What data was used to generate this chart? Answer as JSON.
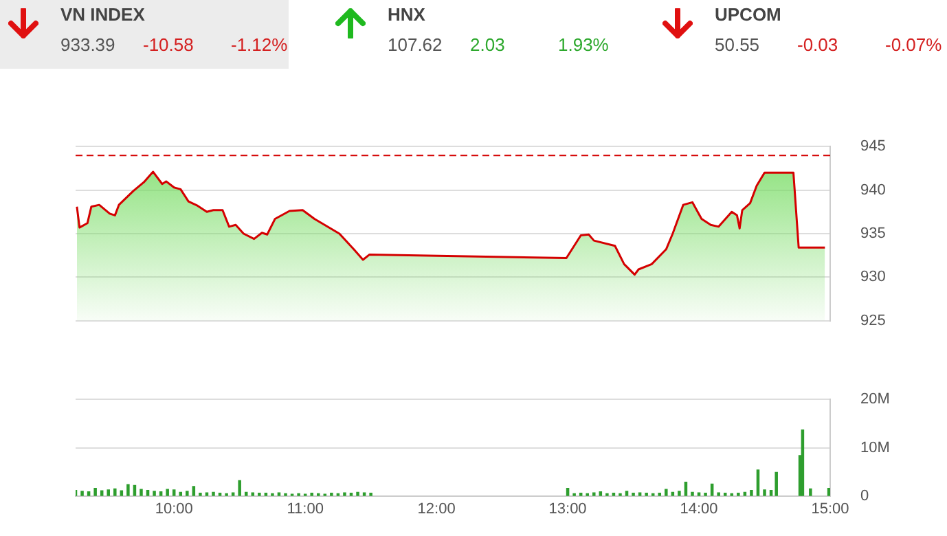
{
  "chart_data": [
    {
      "type": "other",
      "annotations": [
        "VN INDEX",
        "933.39",
        "-10.58",
        "-1.12%",
        "HNX",
        "107.62",
        "2.03",
        "1.93%",
        "UPCOM",
        "50.55",
        "-0.03",
        "-0.07%"
      ]
    },
    {
      "type": "area",
      "color": "#d40000",
      "tick_labels": "y",
      "grid": "y",
      "line_style": "solid",
      "x": [
        9.26,
        9.28,
        9.34,
        9.37,
        9.43,
        9.51,
        9.55,
        9.58,
        9.69,
        9.77,
        9.84,
        9.91,
        9.94,
        10.0,
        10.05,
        10.11,
        10.18,
        10.25,
        10.3,
        10.37,
        10.42,
        10.47,
        10.53,
        10.61,
        10.67,
        10.71,
        10.77,
        10.88,
        10.98,
        11.07,
        11.26,
        11.37,
        11.44,
        11.49,
        12.99,
        13.1,
        13.16,
        13.2,
        13.36,
        13.43,
        13.51,
        13.54,
        13.64,
        13.75,
        13.8,
        13.88,
        13.95,
        14.02,
        14.09,
        14.15,
        14.25,
        14.29,
        14.31,
        14.33,
        14.39,
        14.44,
        14.5,
        14.72,
        14.76,
        14.96
      ],
      "values": [
        938.1,
        935.7,
        936.2,
        938.1,
        938.3,
        937.3,
        937.1,
        938.3,
        939.9,
        940.9,
        942.1,
        940.7,
        941.0,
        940.3,
        940.1,
        938.7,
        938.2,
        937.5,
        937.7,
        937.7,
        935.8,
        936.0,
        935.0,
        934.4,
        935.1,
        934.9,
        936.7,
        937.6,
        937.7,
        936.7,
        935.0,
        933.2,
        932.0,
        932.6,
        932.2,
        934.8,
        934.9,
        934.2,
        933.6,
        931.5,
        930.3,
        930.9,
        931.5,
        933.2,
        935.0,
        938.3,
        938.6,
        936.7,
        936.0,
        935.8,
        937.5,
        937.1,
        935.6,
        937.7,
        938.5,
        940.5,
        942.0,
        942.0,
        933.4,
        933.4
      ],
      "xlim": [
        9.25,
        15
      ],
      "ylim": [
        925,
        945
      ],
      "yticks": [
        925,
        930,
        935,
        940,
        945
      ],
      "ref_lines": [
        {
          "axis": "y",
          "value": 943.97,
          "color": "#d40000",
          "line_style": "dashed"
        }
      ]
    },
    {
      "type": "bar",
      "color": "#2e9e2e",
      "grid": "y",
      "x": [
        9.25,
        9.3,
        9.35,
        9.4,
        9.45,
        9.5,
        9.55,
        9.6,
        9.65,
        9.7,
        9.75,
        9.8,
        9.85,
        9.9,
        9.95,
        10.0,
        10.05,
        10.1,
        10.15,
        10.2,
        10.25,
        10.3,
        10.35,
        10.4,
        10.45,
        10.5,
        10.55,
        10.6,
        10.65,
        10.7,
        10.75,
        10.8,
        10.85,
        10.9,
        10.95,
        11.0,
        11.05,
        11.1,
        11.15,
        11.2,
        11.25,
        11.3,
        11.35,
        11.4,
        11.45,
        11.5,
        13.0,
        13.05,
        13.1,
        13.15,
        13.2,
        13.25,
        13.3,
        13.35,
        13.4,
        13.45,
        13.5,
        13.55,
        13.6,
        13.65,
        13.7,
        13.75,
        13.8,
        13.85,
        13.9,
        13.95,
        14.0,
        14.05,
        14.1,
        14.15,
        14.2,
        14.25,
        14.3,
        14.35,
        14.4,
        14.45,
        14.5,
        14.55,
        14.59,
        14.77,
        14.79,
        14.85,
        14.99
      ],
      "values": [
        1.2,
        1.0,
        0.9,
        1.6,
        1.1,
        1.3,
        1.5,
        1.1,
        2.4,
        2.2,
        1.4,
        1.2,
        1.0,
        0.9,
        1.4,
        1.3,
        0.8,
        1.0,
        2.0,
        0.6,
        0.7,
        0.8,
        0.6,
        0.5,
        0.7,
        3.2,
        0.8,
        0.7,
        0.6,
        0.6,
        0.5,
        0.7,
        0.5,
        0.4,
        0.5,
        0.4,
        0.6,
        0.5,
        0.4,
        0.6,
        0.5,
        0.7,
        0.6,
        0.8,
        0.7,
        0.6,
        1.6,
        0.5,
        0.6,
        0.5,
        0.7,
        0.9,
        0.5,
        0.6,
        0.5,
        1.0,
        0.6,
        0.7,
        0.6,
        0.5,
        0.6,
        1.4,
        0.8,
        1.0,
        2.9,
        0.8,
        0.7,
        0.6,
        2.5,
        0.7,
        0.6,
        0.5,
        0.6,
        0.8,
        1.2,
        5.4,
        1.3,
        1.2,
        4.9,
        8.4,
        13.7,
        1.5,
        1.6
      ],
      "xlim": [
        9.25,
        15
      ],
      "xticks": [
        {
          "value": 10,
          "label": "10:00"
        },
        {
          "value": 11,
          "label": "11:00"
        },
        {
          "value": 12,
          "label": "12:00"
        },
        {
          "value": 13,
          "label": "13:00"
        },
        {
          "value": 14,
          "label": "14:00"
        },
        {
          "value": 15,
          "label": "15:00"
        }
      ],
      "ylim": [
        0,
        20
      ],
      "yticks": [
        0,
        {
          "value": 10,
          "label": "10M"
        },
        {
          "value": 20,
          "label": "20M"
        }
      ]
    }
  ]
}
